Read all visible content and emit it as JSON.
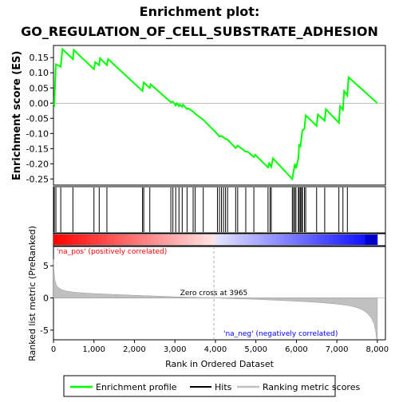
{
  "title": "Enrichment plot:",
  "subtitle": "GO_REGULATION_OF_CELL_SUBSTRATE_ADHESION",
  "colors": {
    "enrichment_line": "#00ff00",
    "hits": "#000000",
    "ranking_fill": "#c0c0c0",
    "positive_label": "#ff0000",
    "negative_label": "#0000ff",
    "bar_pos": "#ff0000",
    "bar_neg": "#0000ff"
  },
  "chart_data": [
    {
      "type": "line",
      "name": "enrichment_profile",
      "ylabel": "Enrichment score (ES)",
      "xlim": [
        0,
        8200
      ],
      "ylim": [
        -0.27,
        0.19
      ],
      "yticks": [
        -0.25,
        -0.2,
        -0.15,
        -0.1,
        -0.05,
        0.0,
        0.05,
        0.1,
        0.15
      ],
      "ytick_labels": [
        "-0.25",
        "-0.20",
        "-0.15",
        "-0.10",
        "-0.05",
        "0.00",
        "0.05",
        "0.10",
        "0.15"
      ],
      "grid": false,
      "series": [
        {
          "name": "Enrichment profile",
          "x": [
            0,
            20,
            60,
            180,
            220,
            480,
            500,
            1000,
            1030,
            1130,
            1150,
            1320,
            1350,
            2200,
            2230,
            2380,
            2400,
            2900,
            2950,
            3020,
            3050,
            3100,
            3120,
            3180,
            3200,
            3300,
            3330,
            3450,
            3500,
            3700,
            4000,
            4100,
            4150,
            4250,
            4300,
            4500,
            4550,
            4750,
            4800,
            4950,
            4980,
            5300,
            5330,
            5380,
            5420,
            5900,
            5930,
            5960,
            5990,
            6050,
            6070,
            6100,
            6130,
            6150,
            6200,
            6230,
            6500,
            6530,
            6700,
            6730,
            7050,
            7080,
            7150,
            7180,
            7260,
            7290,
            8000
          ],
          "y": [
            0.0,
            -0.005,
            0.128,
            0.12,
            0.178,
            0.145,
            0.175,
            0.112,
            0.135,
            0.125,
            0.148,
            0.125,
            0.145,
            0.04,
            0.068,
            0.05,
            0.062,
            0.003,
            0.005,
            -0.008,
            0.0,
            -0.01,
            -0.005,
            -0.012,
            -0.005,
            -0.02,
            -0.017,
            -0.028,
            -0.035,
            -0.055,
            -0.095,
            -0.11,
            -0.108,
            -0.118,
            -0.12,
            -0.148,
            -0.14,
            -0.16,
            -0.16,
            -0.178,
            -0.17,
            -0.212,
            -0.198,
            -0.21,
            -0.182,
            -0.25,
            -0.228,
            -0.2,
            -0.215,
            -0.182,
            -0.138,
            -0.142,
            -0.11,
            -0.09,
            -0.085,
            -0.04,
            -0.075,
            -0.038,
            -0.058,
            -0.02,
            -0.065,
            -0.01,
            -0.022,
            0.04,
            0.025,
            0.085,
            0.0
          ]
        }
      ]
    },
    {
      "type": "scatter",
      "name": "hits",
      "x": [
        20,
        60,
        180,
        480,
        1000,
        1130,
        1320,
        2200,
        2230,
        2380,
        2900,
        2950,
        3020,
        3100,
        3180,
        3300,
        3450,
        3500,
        3700,
        4050,
        4100,
        4150,
        4200,
        4250,
        4300,
        4500,
        4550,
        4750,
        4950,
        5300,
        5350,
        5380,
        5900,
        5930,
        5960,
        5990,
        6050,
        6070,
        6100,
        6130,
        6150,
        6200,
        6230,
        6500,
        6700,
        7050,
        7150,
        7260
      ]
    },
    {
      "type": "area",
      "name": "ranked_list_metric",
      "ylabel": "Ranked list metric (PreRanked)",
      "xlabel": "Rank in Ordered Dataset",
      "xlim": [
        0,
        8200
      ],
      "ylim": [
        -6.5,
        8
      ],
      "yticks": [
        -5,
        0,
        5
      ],
      "ytick_labels": [
        "-5",
        "0",
        "5"
      ],
      "xticks": [
        0,
        1000,
        2000,
        3000,
        4000,
        5000,
        6000,
        7000,
        8000
      ],
      "xtick_labels": [
        "0",
        "1,000",
        "2,000",
        "3,000",
        "4,000",
        "5,000",
        "6,000",
        "7,000",
        "8,000"
      ],
      "x": [
        0,
        10,
        30,
        60,
        100,
        200,
        300,
        500,
        800,
        1200,
        1600,
        2000,
        2500,
        3000,
        3500,
        3965,
        4500,
        5000,
        5500,
        6000,
        6500,
        7000,
        7300,
        7500,
        7650,
        7750,
        7850,
        7920,
        7960,
        7980,
        8000
      ],
      "values": [
        6.0,
        4.6,
        3.0,
        2.2,
        1.7,
        1.3,
        1.1,
        0.9,
        0.75,
        0.62,
        0.52,
        0.42,
        0.3,
        0.18,
        0.08,
        0.0,
        -0.12,
        -0.22,
        -0.35,
        -0.5,
        -0.68,
        -0.95,
        -1.2,
        -1.5,
        -1.9,
        -2.4,
        -3.1,
        -4.0,
        -5.2,
        -6.3,
        -6.5
      ],
      "zero_cross_label": "Zero cross at 3965",
      "zero_cross": 3965,
      "pos_label": "'na_pos' (positively correlated)",
      "neg_label": "'na_neg' (negatively correlated)"
    }
  ],
  "legend": {
    "items": [
      {
        "label": "Enrichment profile",
        "color": "#00ff00"
      },
      {
        "label": "Hits",
        "color": "#000000"
      },
      {
        "label": "Ranking metric scores",
        "color": "#c0c0c0"
      }
    ]
  }
}
